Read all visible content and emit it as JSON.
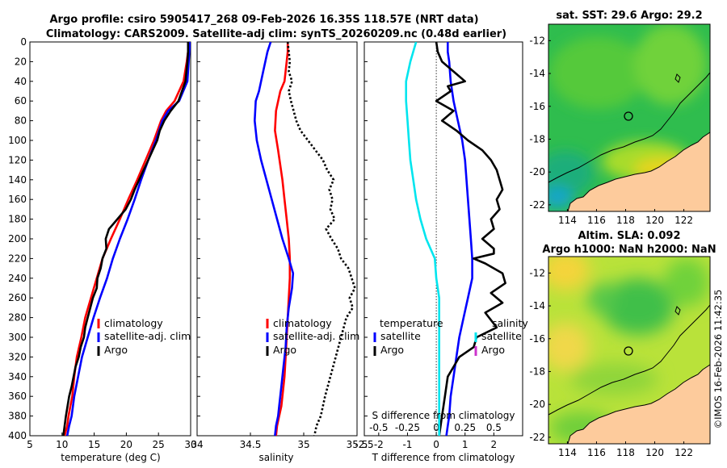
{
  "title": {
    "line1": "Argo profile: csiro 5905417_268 09-Feb-2026 16.35S 118.57E (NRT data)",
    "line2": "Climatology: CARS2009. Satellite-adj clim: synTS_20260209.nc (0.48d earlier)"
  },
  "credit": "©IMOS 16-Feb-2026 11:42:35",
  "colors": {
    "climatology": "#ff0000",
    "satellite": "#0000ff",
    "argo": "#000000",
    "sat_salinity": "#00e5ee",
    "argo_salinity": "#cc33cc",
    "land": "#fdcb9c"
  },
  "chart_data": [
    {
      "type": "line",
      "name": "temperature-profile",
      "xlabel": "temperature (deg C)",
      "ylabel": "",
      "xlim": [
        5,
        30
      ],
      "ylim": [
        0,
        400
      ],
      "y_reversed": true,
      "xticks": [
        5,
        10,
        15,
        20,
        25,
        30
      ],
      "yticks": [
        0,
        20,
        40,
        60,
        80,
        100,
        120,
        140,
        160,
        180,
        200,
        220,
        240,
        260,
        280,
        300,
        320,
        340,
        360,
        380,
        400
      ],
      "legend": [
        "climatology",
        "satellite-adj. clim",
        "Argo"
      ],
      "series": [
        {
          "name": "climatology",
          "color": "#ff0000",
          "x": [
            29.7,
            29.6,
            29.4,
            28.9,
            27.5,
            26.2,
            25.4,
            24.3,
            23.0,
            21.7,
            20.3,
            19.0,
            17.6,
            16.3,
            15.4,
            14.5,
            13.6,
            13.0,
            12.3,
            11.9,
            11.6,
            11.3,
            11.0,
            10.8,
            10.6,
            10.4
          ],
          "depth": [
            0,
            10,
            20,
            40,
            60,
            70,
            80,
            100,
            120,
            140,
            160,
            180,
            200,
            220,
            240,
            260,
            280,
            300,
            320,
            340,
            360,
            370,
            380,
            390,
            395,
            400
          ]
        },
        {
          "name": "satellite-adj. clim",
          "color": "#0000ff",
          "x": [
            29.9,
            29.8,
            29.7,
            29.5,
            28.2,
            26.5,
            25.6,
            24.6,
            23.4,
            22.3,
            21.3,
            20.2,
            19.0,
            17.9,
            17.0,
            15.9,
            14.9,
            14.0,
            13.1,
            12.5,
            11.9,
            11.5,
            11.1,
            10.8
          ],
          "depth": [
            0,
            10,
            20,
            40,
            60,
            70,
            80,
            100,
            120,
            140,
            160,
            180,
            200,
            220,
            240,
            260,
            280,
            300,
            320,
            340,
            360,
            380,
            390,
            400
          ]
        },
        {
          "name": "Argo",
          "color": "#000000",
          "x": [
            29.6,
            29.6,
            29.5,
            29.2,
            28.1,
            26.9,
            25.9,
            25.2,
            24.8,
            24.1,
            23.4,
            22.7,
            22.0,
            21.3,
            20.7,
            19.9,
            18.6,
            17.3,
            16.8,
            16.9,
            16.3,
            16.0,
            15.5,
            15.4,
            14.8,
            14.4,
            14.0,
            13.6,
            13.4,
            12.9,
            12.6,
            12.1,
            11.8,
            11.5,
            11.1,
            10.6,
            10.4,
            10.2
          ],
          "depth": [
            0,
            10,
            20,
            40,
            60,
            70,
            80,
            90,
            100,
            110,
            120,
            130,
            140,
            150,
            160,
            170,
            180,
            190,
            200,
            210,
            220,
            230,
            240,
            250,
            260,
            270,
            280,
            290,
            300,
            310,
            320,
            330,
            340,
            350,
            360,
            380,
            390,
            400
          ]
        }
      ]
    },
    {
      "type": "line",
      "name": "salinity-profile",
      "xlabel": "salinity",
      "ylabel": "",
      "xlim": [
        34,
        35.5
      ],
      "ylim": [
        0,
        400
      ],
      "y_reversed": true,
      "xticks": [
        34,
        34.5,
        35,
        35.5
      ],
      "legend": [
        "climatology",
        "satellite-adj. clim",
        "Argo"
      ],
      "series": [
        {
          "name": "climatology",
          "color": "#ff0000",
          "x": [
            34.85,
            34.85,
            34.84,
            34.82,
            34.78,
            34.74,
            34.73,
            34.76,
            34.8,
            34.82,
            34.84,
            34.86,
            34.87,
            34.87,
            34.86,
            34.85,
            34.84,
            34.83,
            34.82,
            34.8,
            34.79,
            34.77,
            34.75,
            34.74
          ],
          "depth": [
            0,
            10,
            20,
            40,
            50,
            70,
            90,
            110,
            140,
            160,
            180,
            200,
            220,
            240,
            260,
            280,
            300,
            320,
            340,
            360,
            370,
            380,
            390,
            400
          ]
        },
        {
          "name": "satellite-adj. clim",
          "color": "#0000ff",
          "x": [
            34.69,
            34.66,
            34.62,
            34.58,
            34.55,
            34.54,
            34.56,
            34.6,
            34.65,
            34.7,
            34.75,
            34.8,
            34.86,
            34.9,
            34.89,
            34.86,
            34.84,
            34.83,
            34.81,
            34.79,
            34.77,
            34.76,
            34.74,
            34.73
          ],
          "depth": [
            0,
            10,
            30,
            50,
            60,
            80,
            100,
            120,
            140,
            160,
            180,
            200,
            220,
            235,
            250,
            270,
            290,
            310,
            330,
            350,
            370,
            380,
            390,
            400
          ]
        },
        {
          "name": "Argo",
          "color": "#000000",
          "x": [
            34.85,
            34.86,
            34.87,
            34.86,
            34.89,
            34.86,
            34.88,
            34.93,
            34.97,
            35.04,
            35.11,
            35.18,
            35.22,
            35.28,
            35.24,
            35.27,
            35.25,
            35.29,
            35.21,
            35.26,
            35.32,
            35.35,
            35.42,
            35.45,
            35.48,
            35.43,
            35.46,
            35.4,
            35.35,
            35.3,
            35.25,
            35.2,
            35.16,
            35.12,
            35.1
          ],
          "depth": [
            0,
            10,
            20,
            30,
            40,
            50,
            60,
            80,
            90,
            100,
            110,
            120,
            130,
            140,
            150,
            160,
            170,
            180,
            190,
            200,
            210,
            220,
            230,
            240,
            250,
            260,
            270,
            280,
            300,
            320,
            340,
            360,
            380,
            390,
            400
          ]
        }
      ]
    },
    {
      "type": "line",
      "name": "difference-profile",
      "xlabel": "T difference from climatology",
      "x2label": "S difference from climatology",
      "xlim": [
        -2.5,
        3
      ],
      "ylim": [
        0,
        400
      ],
      "y_reversed": true,
      "xticks": [
        -2.5,
        -2,
        -1,
        0,
        1,
        2
      ],
      "x2ticks": [
        -0.5,
        -0.25,
        0,
        0.25,
        0.5
      ],
      "legend_titles": [
        "temperature",
        "salinity"
      ],
      "legend": [
        "satellite",
        "Argo",
        "satellite",
        "Argo"
      ],
      "series": [
        {
          "name": "temperature satellite",
          "color": "#0000ff",
          "x": [
            0.4,
            0.4,
            0.45,
            0.5,
            0.6,
            0.75,
            0.9,
            1.0,
            1.05,
            1.1,
            1.15,
            1.2,
            1.25,
            1.25,
            1.1,
            0.95,
            0.8,
            0.7,
            0.6,
            0.5,
            0.45,
            0.4,
            0.35
          ],
          "depth": [
            0,
            10,
            20,
            40,
            60,
            80,
            100,
            120,
            140,
            160,
            180,
            200,
            220,
            240,
            260,
            280,
            300,
            320,
            340,
            360,
            380,
            390,
            400
          ]
        },
        {
          "name": "temperature Argo",
          "color": "#000000",
          "x": [
            0.0,
            0.05,
            0.2,
            0.6,
            1.0,
            0.4,
            0.5,
            0.0,
            0.6,
            0.2,
            0.7,
            1.1,
            1.6,
            1.9,
            2.1,
            2.2,
            2.3,
            2.1,
            2.2,
            1.9,
            2.0,
            1.6,
            2.0,
            2.0,
            1.3,
            1.7,
            2.3,
            2.4,
            1.9,
            2.3,
            1.7,
            2.1,
            1.4,
            1.3,
            0.8,
            0.6,
            0.4,
            0.3,
            0.2,
            0.1
          ],
          "depth": [
            0,
            10,
            20,
            30,
            40,
            45,
            50,
            60,
            70,
            80,
            90,
            100,
            110,
            120,
            130,
            140,
            150,
            160,
            170,
            180,
            190,
            200,
            210,
            215,
            220,
            225,
            235,
            245,
            255,
            265,
            275,
            290,
            300,
            310,
            320,
            330,
            340,
            360,
            380,
            400
          ]
        },
        {
          "name": "salinity satellite",
          "color": "#00e5ee",
          "x": [
            -0.7,
            -0.9,
            -1.05,
            -1.05,
            -1.0,
            -0.95,
            -0.9,
            -0.8,
            -0.7,
            -0.55,
            -0.35,
            -0.05,
            0.0,
            0.1,
            0.1,
            0.1,
            0.1
          ],
          "depth": [
            0,
            20,
            40,
            60,
            80,
            100,
            120,
            140,
            160,
            180,
            200,
            220,
            240,
            260,
            300,
            360,
            400
          ]
        }
      ]
    }
  ],
  "maps": [
    {
      "name": "sst-map",
      "title": "sat. SST: 29.6 Argo: 29.2",
      "xticks": [
        114,
        116,
        118,
        120,
        122
      ],
      "yticks": [
        -12,
        -14,
        -16,
        -18,
        -20,
        -22
      ],
      "argo_position": [
        118.57,
        -16.35
      ]
    },
    {
      "name": "sla-map",
      "title_line1": "Altim. SLA: 0.092",
      "title_line2": "Argo h1000: NaN h2000: NaN",
      "xticks": [
        114,
        116,
        118,
        120,
        122
      ],
      "yticks": [
        -12,
        -14,
        -16,
        -18,
        -20,
        -22
      ],
      "argo_position": [
        118.57,
        -16.35
      ]
    }
  ]
}
